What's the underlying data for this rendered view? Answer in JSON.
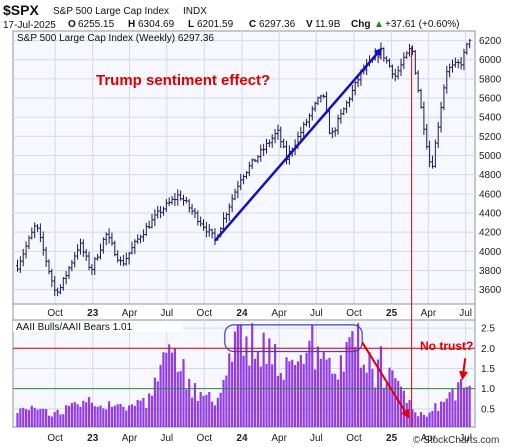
{
  "header": {
    "symbol": "$SPX",
    "name": "S&P 500 Large Cap Index",
    "exchange": "INDX",
    "date": "17-Jul-2025",
    "open_label": "O",
    "open": "6255.15",
    "high_label": "H",
    "high": "6304.69",
    "low_label": "L",
    "low": "6201.59",
    "close_label": "C",
    "close": "6297.36",
    "volume_label": "V",
    "volume": "11.9B",
    "chg_label": "Chg",
    "chg": "+37.61 (+0.60%)",
    "chg_arrow": "▲",
    "credit": "© StockCharts.com"
  },
  "colors": {
    "price": "#1a1a5a",
    "arrow_blue": "#1010c8",
    "bars": "#8a2be2",
    "red": "#e00000",
    "green": "#2e8b2e",
    "panel_bg": "#f6f7ff",
    "grid": "#d6dae6"
  },
  "chart_data": [
    {
      "type": "ohlc",
      "title": "S&P 500 Large Cap Index (Weekly) 6297.36",
      "x_ticks": [
        "Oct",
        "23",
        "Apr",
        "Jul",
        "Oct",
        "24",
        "Apr",
        "Jul",
        "Oct",
        "25",
        "Apr",
        "Jul"
      ],
      "y_ticks": [
        3600,
        3800,
        4000,
        4200,
        4400,
        4600,
        4800,
        5000,
        5200,
        5400,
        5600,
        5800,
        6000,
        6200
      ],
      "ylim": [
        3450,
        6300
      ],
      "grid": true,
      "knots": [
        [
          "2022-07-01",
          3850
        ],
        [
          "2022-08-15",
          4280
        ],
        [
          "2022-09-30",
          3590
        ],
        [
          "2022-10-14",
          3620
        ],
        [
          "2022-11-30",
          4080
        ],
        [
          "2022-12-28",
          3800
        ],
        [
          "2023-02-02",
          4180
        ],
        [
          "2023-03-13",
          3860
        ],
        [
          "2023-04-28",
          4170
        ],
        [
          "2023-06-15",
          4420
        ],
        [
          "2023-07-31",
          4590
        ],
        [
          "2023-10-27",
          4120
        ],
        [
          "2023-12-29",
          4770
        ],
        [
          "2024-03-28",
          5250
        ],
        [
          "2024-04-19",
          4970
        ],
        [
          "2024-07-16",
          5660
        ],
        [
          "2024-08-05",
          5190
        ],
        [
          "2024-10-18",
          5860
        ],
        [
          "2024-12-06",
          6090
        ],
        [
          "2025-01-10",
          5830
        ],
        [
          "2025-02-19",
          6140
        ],
        [
          "2025-03-13",
          5520
        ],
        [
          "2025-04-08",
          4835
        ],
        [
          "2025-05-15",
          5890
        ],
        [
          "2025-06-20",
          5970
        ],
        [
          "2025-07-17",
          6297
        ]
      ],
      "annotations": [
        {
          "text": "Trump sentiment effect?",
          "kind": "arrow",
          "from": [
            "2023-10-27",
            4110
          ],
          "to": [
            "2024-12-06",
            6110
          ]
        }
      ]
    },
    {
      "type": "bar",
      "title": "AAII Bulls/AAII Bears 1.01",
      "last_value": 1.01,
      "y_ticks": [
        0.5,
        1.0,
        1.5,
        2.0,
        2.5
      ],
      "ylim": [
        0.05,
        2.7
      ],
      "reference_lines": [
        {
          "value": 2.0,
          "color": "red"
        },
        {
          "value": 1.0,
          "color": "green"
        }
      ],
      "knots": [
        [
          "2022-07-01",
          0.55
        ],
        [
          "2022-09-30",
          0.35
        ],
        [
          "2022-11-25",
          0.65
        ],
        [
          "2023-01-13",
          0.72
        ],
        [
          "2023-02-24",
          0.62
        ],
        [
          "2023-03-30",
          0.55
        ],
        [
          "2023-05-15",
          0.62
        ],
        [
          "2023-06-15",
          1.45
        ],
        [
          "2023-07-20",
          1.9
        ],
        [
          "2023-08-25",
          1.05
        ],
        [
          "2023-10-25",
          0.65
        ],
        [
          "2023-11-20",
          1.3
        ],
        [
          "2023-12-20",
          2.1
        ],
        [
          "2024-02-15",
          2.05
        ],
        [
          "2024-04-20",
          1.55
        ],
        [
          "2024-06-20",
          1.85
        ],
        [
          "2024-08-05",
          1.35
        ],
        [
          "2024-09-25",
          1.95
        ],
        [
          "2024-10-25",
          1.6
        ],
        [
          "2024-12-15",
          1.25
        ],
        [
          "2025-01-20",
          1.1
        ],
        [
          "2025-02-20",
          0.65
        ],
        [
          "2025-03-15",
          0.32
        ],
        [
          "2025-04-10",
          0.4
        ],
        [
          "2025-05-10",
          0.65
        ],
        [
          "2025-06-10",
          1.0
        ],
        [
          "2025-06-30",
          1.3
        ],
        [
          "2025-07-17",
          1.01
        ]
      ],
      "annotations": [
        {
          "text": "No trust?",
          "kind": "label"
        },
        {
          "kind": "arrow",
          "from": [
            "2024-10-21",
            2.15
          ],
          "to": [
            "2025-02-10",
            0.32
          ]
        },
        {
          "kind": "arrow",
          "from": [
            "2025-06-30",
            1.75
          ],
          "to": [
            "2025-06-24",
            1.28
          ]
        },
        {
          "kind": "highlight-box",
          "from": [
            "2023-11-20",
            1.92
          ],
          "to": [
            "2024-10-21",
            2.58
          ]
        },
        {
          "kind": "vertical-line",
          "at": "2025-02-19"
        }
      ]
    }
  ]
}
